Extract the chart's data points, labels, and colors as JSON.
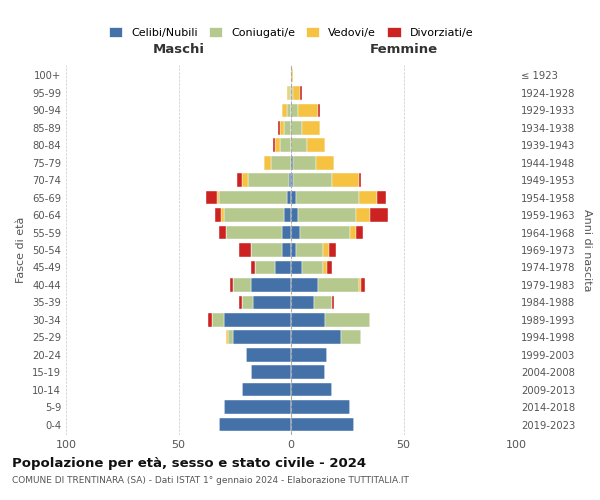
{
  "age_groups": [
    "0-4",
    "5-9",
    "10-14",
    "15-19",
    "20-24",
    "25-29",
    "30-34",
    "35-39",
    "40-44",
    "45-49",
    "50-54",
    "55-59",
    "60-64",
    "65-69",
    "70-74",
    "75-79",
    "80-84",
    "85-89",
    "90-94",
    "95-99",
    "100+"
  ],
  "birth_years": [
    "2019-2023",
    "2014-2018",
    "2009-2013",
    "2004-2008",
    "1999-2003",
    "1994-1998",
    "1989-1993",
    "1984-1988",
    "1979-1983",
    "1974-1978",
    "1969-1973",
    "1964-1968",
    "1959-1963",
    "1954-1958",
    "1949-1953",
    "1944-1948",
    "1939-1943",
    "1934-1938",
    "1929-1933",
    "1924-1928",
    "≤ 1923"
  ],
  "maschi": {
    "celibi": [
      32,
      30,
      22,
      18,
      20,
      26,
      30,
      17,
      18,
      7,
      4,
      4,
      3,
      2,
      1,
      0,
      0,
      0,
      0,
      0,
      0
    ],
    "coniugati": [
      0,
      0,
      0,
      0,
      0,
      2,
      5,
      5,
      8,
      9,
      14,
      25,
      27,
      30,
      18,
      9,
      5,
      3,
      2,
      1,
      0
    ],
    "vedovi": [
      0,
      0,
      0,
      0,
      0,
      1,
      0,
      0,
      0,
      0,
      0,
      0,
      1,
      1,
      3,
      3,
      2,
      2,
      2,
      1,
      0
    ],
    "divorziati": [
      0,
      0,
      0,
      0,
      0,
      0,
      2,
      1,
      1,
      2,
      5,
      3,
      3,
      5,
      2,
      0,
      1,
      1,
      0,
      0,
      0
    ]
  },
  "femmine": {
    "nubili": [
      28,
      26,
      18,
      15,
      16,
      22,
      15,
      10,
      12,
      5,
      2,
      4,
      3,
      2,
      1,
      1,
      0,
      0,
      0,
      0,
      0
    ],
    "coniugate": [
      0,
      0,
      0,
      0,
      0,
      9,
      20,
      8,
      18,
      9,
      12,
      22,
      26,
      28,
      17,
      10,
      7,
      5,
      3,
      1,
      0
    ],
    "vedove": [
      0,
      0,
      0,
      0,
      0,
      0,
      0,
      0,
      1,
      2,
      3,
      3,
      6,
      8,
      12,
      8,
      8,
      8,
      9,
      3,
      1
    ],
    "divorziate": [
      0,
      0,
      0,
      0,
      0,
      0,
      0,
      1,
      2,
      2,
      3,
      3,
      8,
      4,
      1,
      0,
      0,
      0,
      1,
      1,
      0
    ]
  },
  "colors": {
    "celibi": "#4472a8",
    "coniugati": "#b5c98e",
    "vedovi": "#f5c242",
    "divorziati": "#cc2222"
  },
  "xlim": 100,
  "title": "Popolazione per età, sesso e stato civile - 2024",
  "subtitle": "COMUNE DI TRENTINARA (SA) - Dati ISTAT 1° gennaio 2024 - Elaborazione TUTTITALIA.IT",
  "ylabel_left": "Fasce di età",
  "ylabel_right": "Anni di nascita",
  "xlabel_left": "Maschi",
  "xlabel_right": "Femmine"
}
